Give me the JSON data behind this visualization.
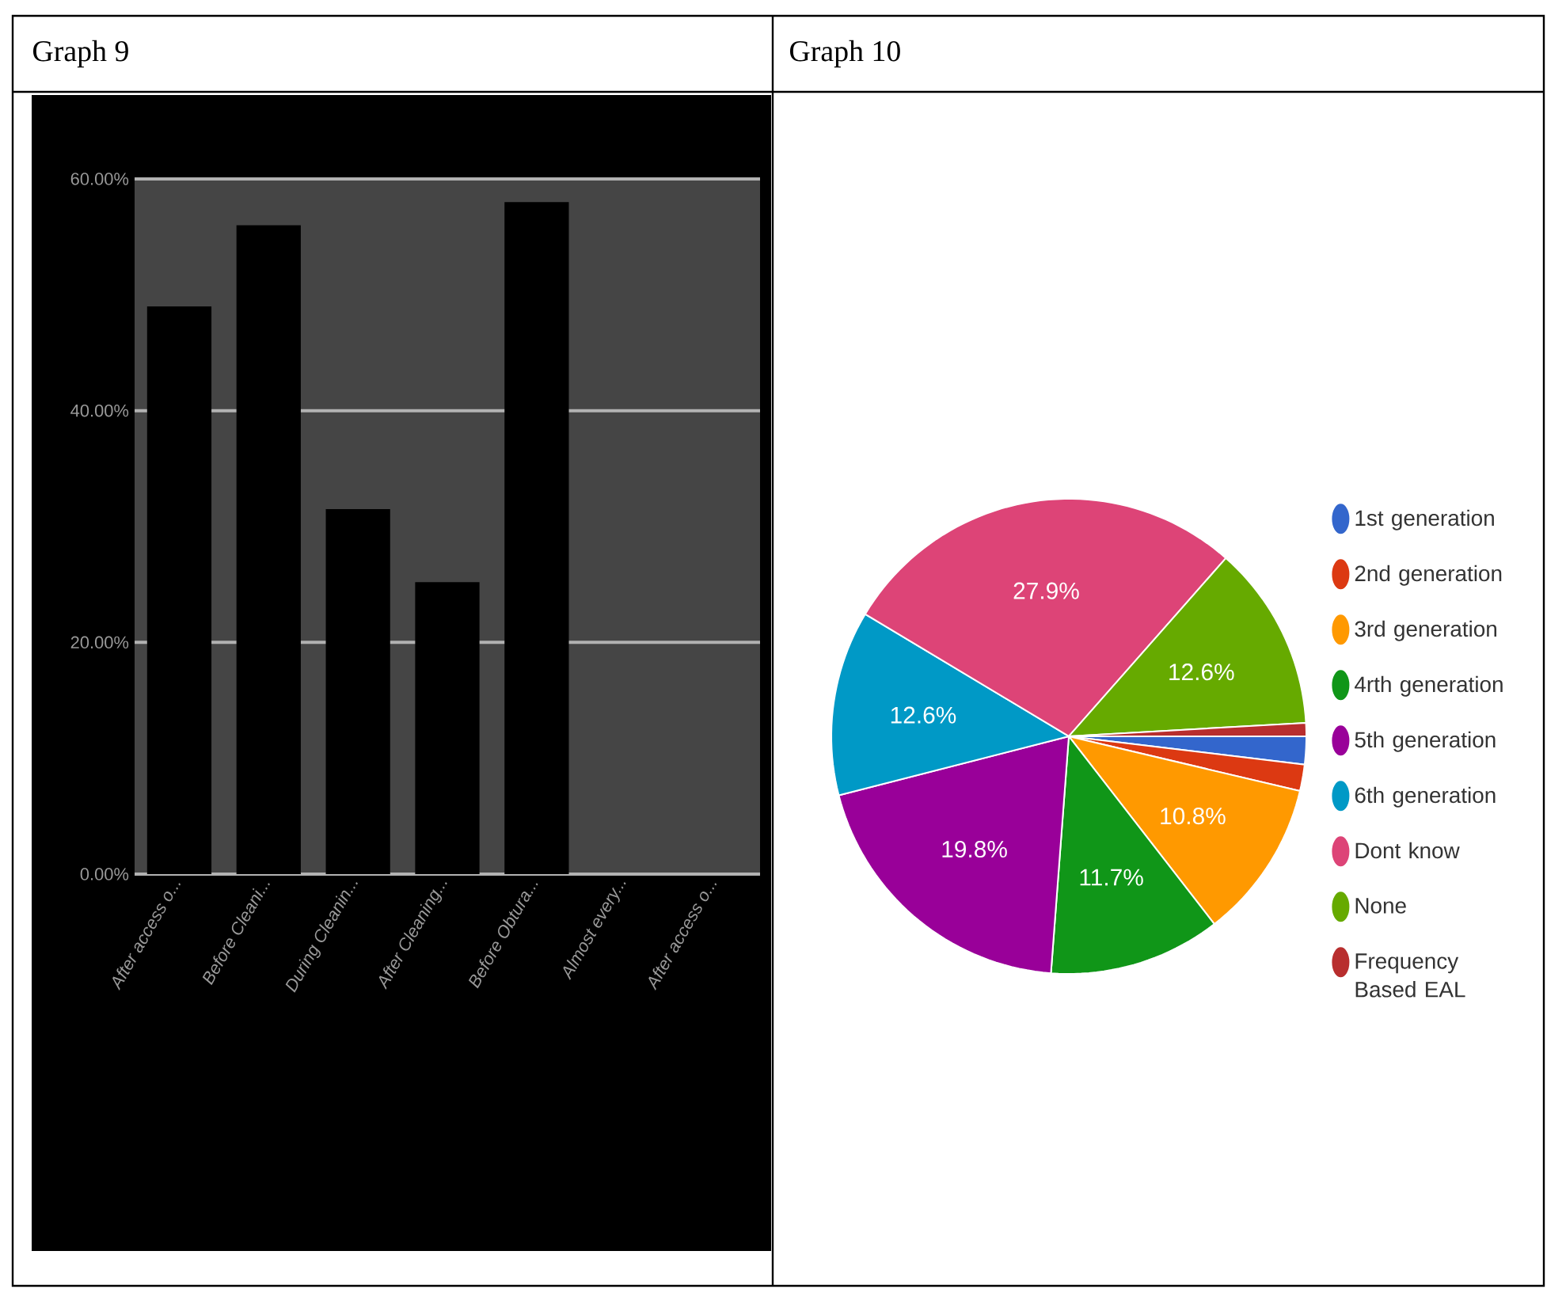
{
  "chart_data": [
    {
      "type": "bar",
      "title": "Graph 9",
      "categories": [
        "After access o...",
        "Before Cleani...",
        "During Cleanin...",
        "After Cleaning...",
        "Before Obtura...",
        "Almost every...",
        "After access o..."
      ],
      "values": [
        49,
        56,
        31.5,
        25.2,
        58,
        0,
        0
      ],
      "color": "#000000",
      "ylim": [
        0,
        60
      ],
      "yticks": [
        {
          "value": 0,
          "label": "0.00%"
        },
        {
          "value": 20,
          "label": "20.00%"
        },
        {
          "value": 40,
          "label": "40.00%"
        },
        {
          "value": 60,
          "label": "60.00%"
        }
      ],
      "grid": "y"
    },
    {
      "type": "pie",
      "title": "Graph 10",
      "categories": [
        "1st generation",
        "2nd generation",
        "3rd generation",
        "4rth generation",
        "5th generation",
        "6th generation",
        "Dont know",
        "None",
        "Frequency Based EAL"
      ],
      "values": [
        1.9,
        1.8,
        10.8,
        11.7,
        19.8,
        12.6,
        27.9,
        12.6,
        0.9
      ],
      "colors": [
        "#3366cc",
        "#dc3912",
        "#ff9900",
        "#109618",
        "#990099",
        "#0099c6",
        "#dd4477",
        "#66aa00",
        "#b82e2e"
      ],
      "value_labels": [
        null,
        null,
        "10.8%",
        "11.7%",
        "19.8%",
        "12.6%",
        "27.9%",
        "12.6%",
        null
      ],
      "legend": "right"
    }
  ]
}
